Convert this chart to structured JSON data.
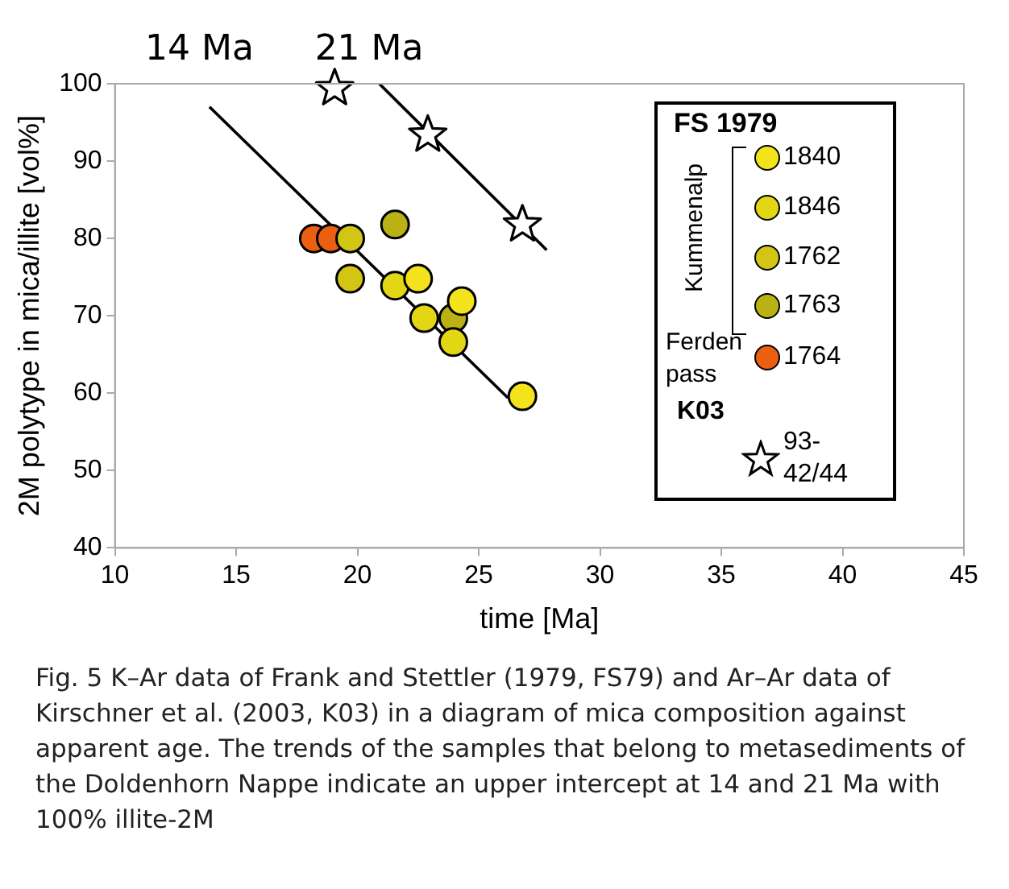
{
  "chart_data": {
    "type": "scatter",
    "xlabel": "time [Ma]",
    "ylabel": "2M polytype in mica/illite [vol%]",
    "xlim": [
      10,
      45
    ],
    "xticks": [
      10,
      15,
      20,
      25,
      30,
      35,
      40,
      45
    ],
    "ylim": [
      40,
      100
    ],
    "yticks": [
      40,
      50,
      60,
      70,
      80,
      90,
      100
    ],
    "grid": false,
    "legend": "right",
    "legend_title": "FS 1979",
    "series": [
      {
        "name": "1840",
        "color": "#f2e31c",
        "marker": "circle",
        "x": [
          26.8,
          24.3,
          22.5
        ],
        "values": [
          59.6,
          71.9,
          74.8
        ]
      },
      {
        "name": "1846",
        "color": "#e3d614",
        "marker": "circle",
        "x": [
          21.55,
          22.75,
          23.95
        ],
        "values": [
          73.9,
          69.7,
          66.6
        ]
      },
      {
        "name": "1762",
        "color": "#d2c514",
        "marker": "circle",
        "x": [
          19.7,
          19.7
        ],
        "values": [
          80,
          74.8
        ]
      },
      {
        "name": "1763",
        "color": "#bab214",
        "marker": "circle",
        "x": [
          21.55,
          23.95
        ],
        "values": [
          81.8,
          69.7
        ]
      },
      {
        "name": "1764",
        "color": "#ea6010",
        "marker": "circle",
        "x": [
          18.2,
          18.9
        ],
        "values": [
          80,
          80
        ]
      },
      {
        "name": "93-42/44",
        "color": "#ffffff",
        "marker": "star",
        "x": [
          19.06,
          22.9,
          26.8
        ],
        "values": [
          99.6,
          93.6,
          82
        ]
      },
      {
        "type": "line",
        "color": "#000000",
        "marker": "none",
        "x": [
          13.9,
          26.2
        ],
        "values": [
          97,
          59.4
        ]
      },
      {
        "type": "line",
        "color": "#000000",
        "marker": "none",
        "x": [
          20.9,
          27.8
        ],
        "values": [
          100,
          78.5
        ]
      }
    ],
    "annotations": [
      "14 Ma",
      "21 Ma",
      "Kummenalp",
      "Ferden pass",
      "K03",
      "Fig. 5 K–Ar data of Frank and Stettler (1979, FS79) and Ar–Ar data of Kirschner et al. (2003, K03) in a diagram of mica composition against apparent age. The trends of the samples that belong to metasediments of the Doldenhorn Nappe indicate an upper intercept at 14 and 21 Ma with 100% illite-2M"
    ]
  }
}
